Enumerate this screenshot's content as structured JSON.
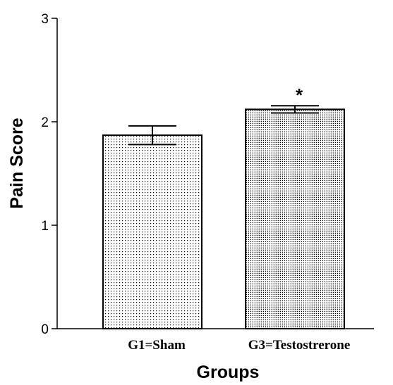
{
  "chart_data": {
    "type": "bar",
    "categories": [
      "G1=Sham",
      "G3=Testostrerone"
    ],
    "values": [
      1.87,
      2.12
    ],
    "errors": [
      0.09,
      0.035
    ],
    "annotations": [
      "",
      "*"
    ],
    "title": "",
    "xlabel": "Groups",
    "ylabel": "Pain Score",
    "ylim": [
      0,
      3
    ],
    "yticks": [
      0,
      1,
      2,
      3
    ],
    "ytick_labels": [
      "0",
      "1",
      "2",
      "3"
    ],
    "grid": false,
    "legend": "none",
    "bar_fill": "dotted",
    "colors": {
      "bar_border": "#000000",
      "bar_dots": "#000000",
      "background": "#ffffff"
    }
  }
}
